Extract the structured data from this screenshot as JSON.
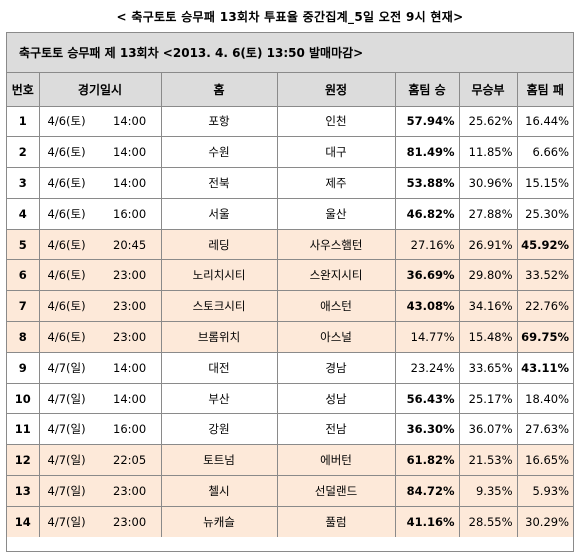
{
  "title": "< 축구토토 승무패 13회차 투표율 중간집계_5일 오전 9시 현재>",
  "banner": "축구토토 승무패 제 13회차 <2013. 4. 6(토) 13:50 발매마감>",
  "columns": [
    "번호",
    "경기일시",
    "홈",
    "원정",
    "홈팀 승",
    "무승부",
    "홈팀 패"
  ],
  "rows": [
    {
      "no": "1",
      "date": "4/6(토)",
      "time": "14:00",
      "home": "포항",
      "away": "인천",
      "win": "57.94%",
      "draw": "25.62%",
      "loss": "16.44%",
      "bold": "win",
      "shade": "white"
    },
    {
      "no": "2",
      "date": "4/6(토)",
      "time": "14:00",
      "home": "수원",
      "away": "대구",
      "win": "81.49%",
      "draw": "11.85%",
      "loss": "6.66%",
      "bold": "win",
      "shade": "white"
    },
    {
      "no": "3",
      "date": "4/6(토)",
      "time": "14:00",
      "home": "전북",
      "away": "제주",
      "win": "53.88%",
      "draw": "30.96%",
      "loss": "15.15%",
      "bold": "win",
      "shade": "white"
    },
    {
      "no": "4",
      "date": "4/6(토)",
      "time": "16:00",
      "home": "서울",
      "away": "울산",
      "win": "46.82%",
      "draw": "27.88%",
      "loss": "25.30%",
      "bold": "win",
      "shade": "white"
    },
    {
      "no": "5",
      "date": "4/6(토)",
      "time": "20:45",
      "home": "레딩",
      "away": "사우스햄턴",
      "win": "27.16%",
      "draw": "26.91%",
      "loss": "45.92%",
      "bold": "loss",
      "shade": "shaded"
    },
    {
      "no": "6",
      "date": "4/6(토)",
      "time": "23:00",
      "home": "노리치시티",
      "away": "스완지시티",
      "win": "36.69%",
      "draw": "29.80%",
      "loss": "33.52%",
      "bold": "win",
      "shade": "shaded"
    },
    {
      "no": "7",
      "date": "4/6(토)",
      "time": "23:00",
      "home": "스토크시티",
      "away": "애스턴",
      "win": "43.08%",
      "draw": "34.16%",
      "loss": "22.76%",
      "bold": "win",
      "shade": "shaded"
    },
    {
      "no": "8",
      "date": "4/6(토)",
      "time": "23:00",
      "home": "브롬위치",
      "away": "아스널",
      "win": "14.77%",
      "draw": "15.48%",
      "loss": "69.75%",
      "bold": "loss",
      "shade": "shaded"
    },
    {
      "no": "9",
      "date": "4/7(일)",
      "time": "14:00",
      "home": "대전",
      "away": "경남",
      "win": "23.24%",
      "draw": "33.65%",
      "loss": "43.11%",
      "bold": "loss",
      "shade": "white"
    },
    {
      "no": "10",
      "date": "4/7(일)",
      "time": "14:00",
      "home": "부산",
      "away": "성남",
      "win": "56.43%",
      "draw": "25.17%",
      "loss": "18.40%",
      "bold": "win",
      "shade": "white"
    },
    {
      "no": "11",
      "date": "4/7(일)",
      "time": "16:00",
      "home": "강원",
      "away": "전남",
      "win": "36.30%",
      "draw": "36.07%",
      "loss": "27.63%",
      "bold": "win",
      "shade": "white"
    },
    {
      "no": "12",
      "date": "4/7(일)",
      "time": "22:05",
      "home": "토트넘",
      "away": "에버턴",
      "win": "61.82%",
      "draw": "21.53%",
      "loss": "16.65%",
      "bold": "win",
      "shade": "shaded"
    },
    {
      "no": "13",
      "date": "4/7(일)",
      "time": "23:00",
      "home": "첼시",
      "away": "선덜랜드",
      "win": "84.72%",
      "draw": "9.35%",
      "loss": "5.93%",
      "bold": "win",
      "shade": "shaded"
    },
    {
      "no": "14",
      "date": "4/7(일)",
      "time": "23:00",
      "home": "뉴캐슬",
      "away": "풀럼",
      "win": "41.16%",
      "draw": "28.55%",
      "loss": "30.29%",
      "bold": "win",
      "shade": "shaded"
    }
  ],
  "colors": {
    "header_bg": "#dcdcdc",
    "shaded_row": "#fde9d9",
    "border": "#8a8a8a"
  }
}
